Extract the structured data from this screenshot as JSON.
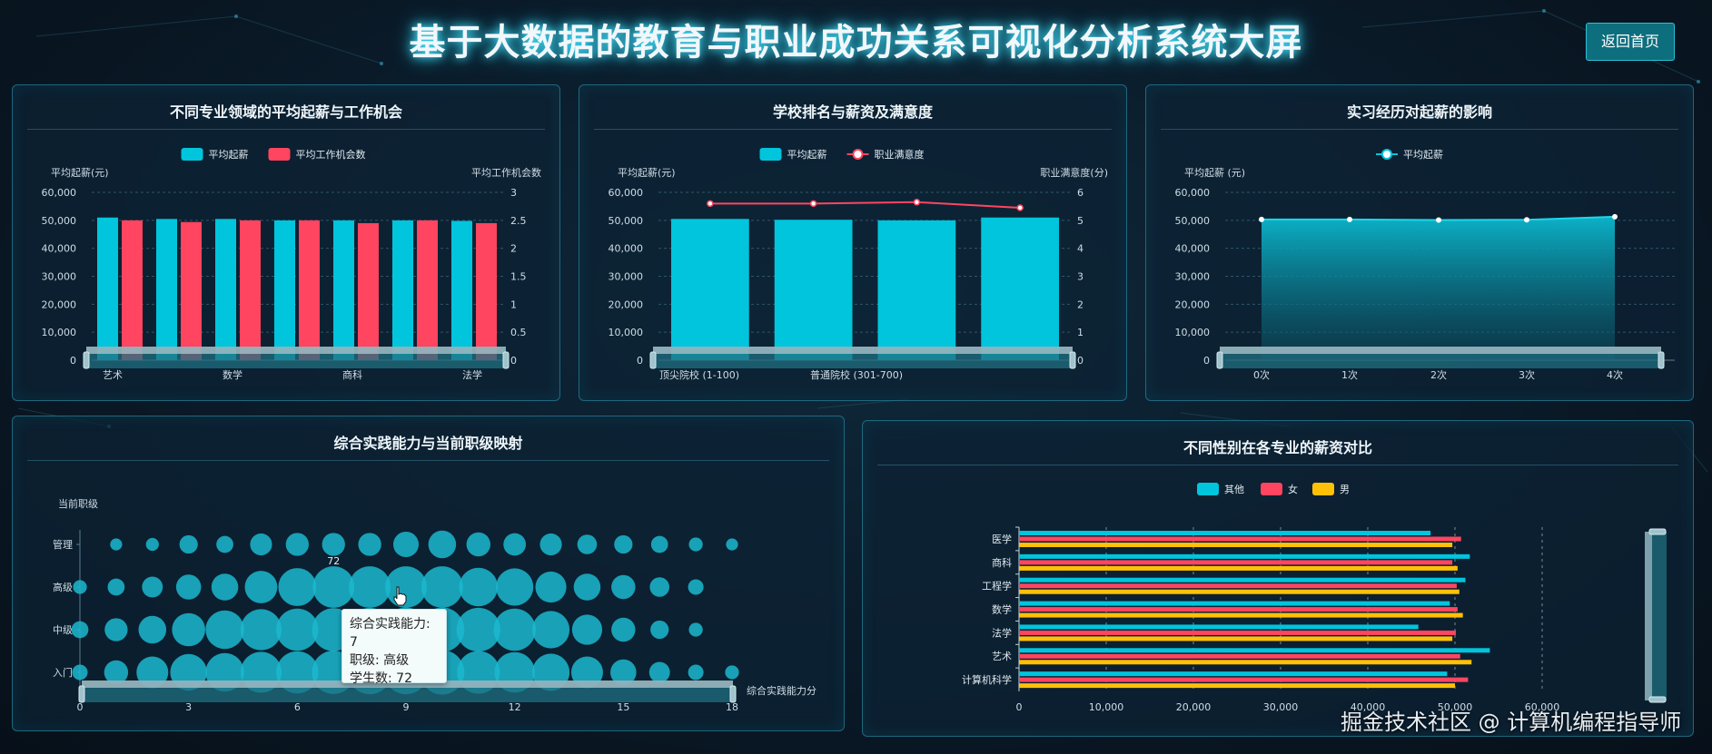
{
  "header": {
    "title": "基于大数据的教育与职业成功关系可视化分析系统大屏",
    "home_button": "返回首页"
  },
  "panels": {
    "major": {
      "title": "不同专业领域的平均起薪与工作机会",
      "legend": [
        "平均起薪",
        "平均工作机会数"
      ],
      "y_left_label": "平均起薪(元)",
      "y_right_label": "平均工作机会数",
      "y_left_ticks": [
        "60,000",
        "50,000",
        "40,000",
        "30,000",
        "20,000",
        "10,000",
        "0"
      ],
      "y_right_ticks": [
        "3",
        "2.5",
        "2",
        "1.5",
        "1",
        "0.5",
        "0"
      ],
      "x_ticks": [
        "艺术",
        "数学",
        "商科",
        "法学"
      ]
    },
    "school": {
      "title": "学校排名与薪资及满意度",
      "legend": [
        "平均起薪",
        "职业满意度"
      ],
      "y_left_label": "平均起薪(元)",
      "y_right_label": "职业满意度(分)",
      "y_left_ticks": [
        "60,000",
        "50,000",
        "40,000",
        "30,000",
        "20,000",
        "10,000",
        "0"
      ],
      "y_right_ticks": [
        "6",
        "5",
        "4",
        "3",
        "2",
        "1",
        "0"
      ],
      "x_ticks": [
        "顶尖院校 (1-100)",
        "普通院校 (301-700)"
      ]
    },
    "intern": {
      "title": "实习经历对起薪的影响",
      "legend": [
        "平均起薪"
      ],
      "y_left_label": "平均起薪 (元)",
      "y_left_ticks": [
        "60,000",
        "50,000",
        "40,000",
        "30,000",
        "20,000",
        "10,000",
        "0"
      ],
      "x_ticks": [
        "0次",
        "1次",
        "2次",
        "3次",
        "4次"
      ]
    },
    "practice": {
      "title": "综合实践能力与当前职级映射",
      "y_label": "当前职级",
      "y_ticks": [
        "管理",
        "高级",
        "中级",
        "入门"
      ],
      "x_label": "综合实践能力分",
      "x_ticks": [
        "0",
        "3",
        "6",
        "9",
        "12",
        "15",
        "18"
      ],
      "highlight_label": "72",
      "tooltip": [
        "综合实践能力: 7",
        "职级: 高级",
        "学生数: 72"
      ]
    },
    "gender": {
      "title": "不同性别在各专业的薪资对比",
      "legend": [
        "其他",
        "女",
        "男"
      ],
      "y_ticks": [
        "医学",
        "商科",
        "工程学",
        "数学",
        "法学",
        "艺术",
        "计算机科学"
      ],
      "x_ticks": [
        "0",
        "10,000",
        "20,000",
        "30,000",
        "40,000",
        "50,000",
        "60,000"
      ]
    }
  },
  "colors": {
    "cyan": "#00c5dc",
    "red": "#ff4560",
    "yellow": "#ffc107",
    "panel_border": "#2fa2be"
  },
  "watermark": "掘金技术社区 @ 计算机编程指导师",
  "chart_data": [
    {
      "type": "bar",
      "title": "不同专业领域的平均起薪与工作机会",
      "categories": [
        "艺术",
        "",
        "数学",
        "",
        "商科",
        "",
        "法学"
      ],
      "series": [
        {
          "name": "平均起薪",
          "axis": "left",
          "values": [
            51000,
            50500,
            50500,
            50000,
            50000,
            50000,
            49800
          ]
        },
        {
          "name": "平均工作机会数",
          "axis": "right",
          "values": [
            2.5,
            2.47,
            2.5,
            2.5,
            2.45,
            2.5,
            2.45
          ]
        }
      ],
      "ylim_left": [
        0,
        60000
      ],
      "ylim_right": [
        0,
        3
      ]
    },
    {
      "type": "bar",
      "title": "学校排名与薪资及满意度",
      "categories": [
        "顶尖院校 (1-100)",
        "",
        "普通院校 (301-700)",
        ""
      ],
      "series": [
        {
          "name": "平均起薪",
          "axis": "left",
          "values": [
            50500,
            50200,
            50000,
            51000
          ]
        },
        {
          "name": "职业满意度",
          "axis": "right",
          "type": "line",
          "values": [
            5.6,
            5.6,
            5.65,
            5.45
          ]
        }
      ],
      "ylim_left": [
        0,
        60000
      ],
      "ylim_right": [
        0,
        6
      ]
    },
    {
      "type": "area",
      "title": "实习经历对起薪的影响",
      "categories": [
        "0次",
        "1次",
        "2次",
        "3次",
        "4次"
      ],
      "series": [
        {
          "name": "平均起薪",
          "values": [
            50300,
            50300,
            50100,
            50200,
            51300
          ]
        }
      ],
      "ylim": [
        0,
        60000
      ]
    },
    {
      "type": "scatter",
      "title": "综合实践能力与当前职级映射",
      "x": [
        0,
        1,
        2,
        3,
        4,
        5,
        6,
        7,
        8,
        9,
        10,
        11,
        12,
        13,
        14,
        15,
        16,
        17,
        18
      ],
      "levels": [
        "入门",
        "中级",
        "高级",
        "管理"
      ],
      "series": [
        {
          "name": "管理",
          "values": [
            0,
            6,
            7,
            14,
            12,
            20,
            22,
            22,
            22,
            27,
            32,
            24,
            21,
            20,
            16,
            14,
            12,
            8,
            6
          ]
        },
        {
          "name": "高级",
          "values": [
            8,
            12,
            18,
            26,
            30,
            44,
            60,
            72,
            72,
            72,
            72,
            62,
            58,
            40,
            30,
            24,
            16,
            10,
            0
          ]
        },
        {
          "name": "中级",
          "values": [
            12,
            22,
            32,
            46,
            62,
            70,
            74,
            77,
            80,
            82,
            82,
            80,
            74,
            58,
            38,
            24,
            14,
            8,
            0
          ]
        },
        {
          "name": "入门",
          "values": [
            10,
            24,
            42,
            56,
            62,
            70,
            74,
            78,
            80,
            80,
            82,
            76,
            68,
            58,
            42,
            28,
            18,
            10,
            8
          ]
        }
      ],
      "xlabel": "综合实践能力分",
      "ylabel": "当前职级"
    },
    {
      "type": "bar",
      "orientation": "horizontal",
      "title": "不同性别在各专业的薪资对比",
      "categories": [
        "医学",
        "商科",
        "工程学",
        "数学",
        "法学",
        "艺术",
        "计算机科学"
      ],
      "series": [
        {
          "name": "其他",
          "values": [
            47200,
            51700,
            51200,
            49400,
            45800,
            54000,
            49100
          ]
        },
        {
          "name": "女",
          "values": [
            50700,
            49700,
            50200,
            50300,
            50100,
            50600,
            51500
          ]
        },
        {
          "name": "男",
          "values": [
            49700,
            50300,
            50500,
            50900,
            49700,
            51900,
            50000
          ]
        }
      ],
      "xlim": [
        0,
        60000
      ]
    }
  ]
}
